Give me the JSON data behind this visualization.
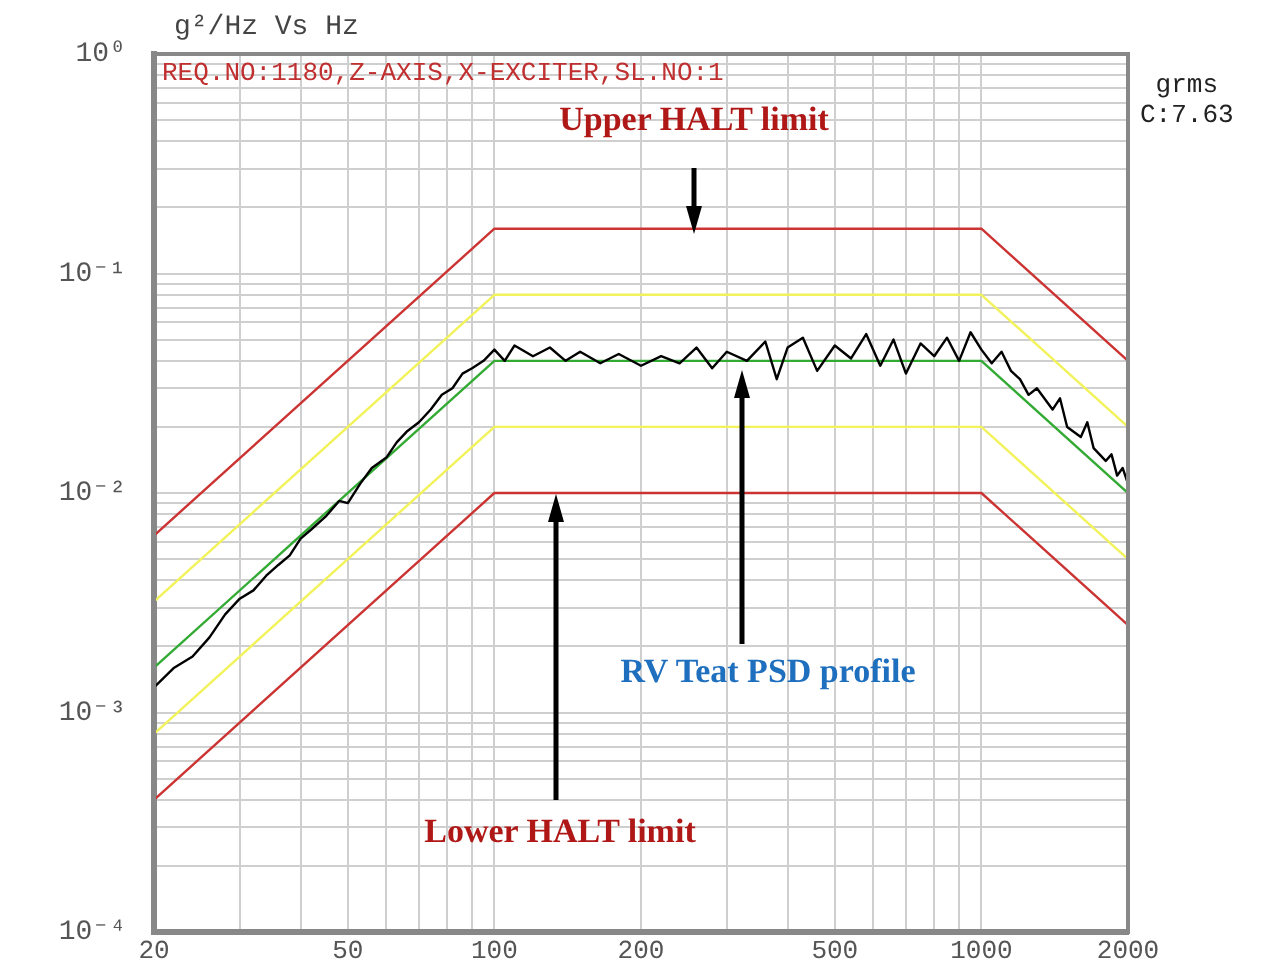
{
  "chart_data": {
    "type": "line",
    "title": "g²/Hz Vs Hz",
    "log": "xy",
    "grid": true,
    "legend": false,
    "marker": "none",
    "line_style": "solid",
    "xlim": [
      20,
      2000
    ],
    "ylim": [
      0.0001,
      1
    ],
    "xticks": [
      20,
      {
        "value": 30,
        "label": null
      },
      {
        "value": 40,
        "label": null
      },
      50,
      {
        "value": 60,
        "label": null
      },
      {
        "value": 70,
        "label": null
      },
      {
        "value": 80,
        "label": null
      },
      {
        "value": 90,
        "label": null
      },
      100,
      200,
      {
        "value": 300,
        "label": null
      },
      {
        "value": 400,
        "label": null
      },
      500,
      {
        "value": 600,
        "label": null
      },
      {
        "value": 700,
        "label": null
      },
      {
        "value": 800,
        "label": null
      },
      {
        "value": 900,
        "label": null
      },
      1000,
      2000
    ],
    "yticks": [
      {
        "value": 0.0001,
        "label": "10⁻⁴"
      },
      {
        "value": 0.0002,
        "label": null
      },
      {
        "value": 0.0003,
        "label": null
      },
      {
        "value": 0.0004,
        "label": null
      },
      {
        "value": 0.0005,
        "label": null
      },
      {
        "value": 0.0006,
        "label": null
      },
      {
        "value": 0.0007,
        "label": null
      },
      {
        "value": 0.0008,
        "label": null
      },
      {
        "value": 0.0009,
        "label": null
      },
      {
        "value": 0.001,
        "label": "10⁻³"
      },
      {
        "value": 0.002,
        "label": null
      },
      {
        "value": 0.003,
        "label": null
      },
      {
        "value": 0.004,
        "label": null
      },
      {
        "value": 0.005,
        "label": null
      },
      {
        "value": 0.006,
        "label": null
      },
      {
        "value": 0.007,
        "label": null
      },
      {
        "value": 0.008,
        "label": null
      },
      {
        "value": 0.009,
        "label": null
      },
      {
        "value": 0.01,
        "label": "10⁻²"
      },
      {
        "value": 0.02,
        "label": null
      },
      {
        "value": 0.03,
        "label": null
      },
      {
        "value": 0.04,
        "label": null
      },
      {
        "value": 0.05,
        "label": null
      },
      {
        "value": 0.06,
        "label": null
      },
      {
        "value": 0.07,
        "label": null
      },
      {
        "value": 0.08,
        "label": null
      },
      {
        "value": 0.09,
        "label": null
      },
      {
        "value": 0.1,
        "label": "10⁻¹"
      },
      {
        "value": 0.2,
        "label": null
      },
      {
        "value": 0.3,
        "label": null
      },
      {
        "value": 0.4,
        "label": null
      },
      {
        "value": 0.5,
        "label": null
      },
      {
        "value": 0.6,
        "label": null
      },
      {
        "value": 0.7,
        "label": null
      },
      {
        "value": 0.8,
        "label": null
      },
      {
        "value": 0.9,
        "label": null
      },
      {
        "value": 1,
        "label": "10⁰"
      }
    ],
    "series": [
      {
        "color": "#cc3333",
        "x": [
          20,
          100,
          1000,
          2000
        ],
        "values": [
          0.0064,
          0.16,
          0.16,
          0.04
        ]
      },
      {
        "color": "#f2f25a",
        "x": [
          20,
          100,
          1000,
          2000
        ],
        "values": [
          0.0032,
          0.08,
          0.08,
          0.02
        ]
      },
      {
        "color": "#f2f25a",
        "x": [
          20,
          100,
          1000,
          2000
        ],
        "values": [
          0.0008,
          0.02,
          0.02,
          0.005
        ]
      },
      {
        "color": "#cc3333",
        "x": [
          20,
          100,
          1000,
          2000
        ],
        "values": [
          0.0004,
          0.01,
          0.01,
          0.0025
        ]
      },
      {
        "color": "#33aa33",
        "x": [
          20,
          100,
          1000,
          2000
        ],
        "values": [
          0.0016,
          0.04,
          0.04,
          0.01
        ]
      },
      {
        "color": "#000000",
        "x": [
          20,
          22,
          24,
          26,
          28,
          30,
          32,
          34,
          36,
          38,
          40,
          42,
          45,
          48,
          50,
          53,
          56,
          60,
          63,
          66,
          70,
          74,
          78,
          82,
          86,
          90,
          95,
          100,
          105,
          110,
          120,
          130,
          140,
          150,
          165,
          180,
          200,
          220,
          240,
          260,
          280,
          300,
          330,
          360,
          380,
          400,
          430,
          460,
          500,
          540,
          580,
          620,
          660,
          700,
          750,
          800,
          850,
          900,
          950,
          1000,
          1050,
          1100,
          1150,
          1200,
          1250,
          1300,
          1400,
          1450,
          1500,
          1600,
          1650,
          1700,
          1800,
          1850,
          1900,
          1950,
          2000
        ],
        "values": [
          0.0013,
          0.0016,
          0.0018,
          0.0022,
          0.0028,
          0.0033,
          0.0036,
          0.0042,
          0.0047,
          0.0052,
          0.0062,
          0.0068,
          0.0078,
          0.0092,
          0.009,
          0.011,
          0.013,
          0.0145,
          0.017,
          0.019,
          0.021,
          0.024,
          0.028,
          0.03,
          0.035,
          0.037,
          0.04,
          0.045,
          0.04,
          0.047,
          0.042,
          0.046,
          0.04,
          0.044,
          0.039,
          0.043,
          0.038,
          0.042,
          0.039,
          0.046,
          0.037,
          0.044,
          0.04,
          0.049,
          0.033,
          0.046,
          0.051,
          0.036,
          0.047,
          0.041,
          0.053,
          0.038,
          0.05,
          0.035,
          0.048,
          0.042,
          0.051,
          0.04,
          0.054,
          0.045,
          0.039,
          0.044,
          0.036,
          0.033,
          0.028,
          0.03,
          0.024,
          0.027,
          0.02,
          0.018,
          0.021,
          0.016,
          0.014,
          0.015,
          0.012,
          0.013,
          0.011
        ]
      }
    ],
    "annotations": [
      "REQ.NO:1180,Z-AXIS,X-EXCITER,SL.NO:1",
      "grms\nC:7.63",
      "Upper HALT limit",
      "RV Teat PSD profile",
      "Lower HALT limit"
    ]
  }
}
